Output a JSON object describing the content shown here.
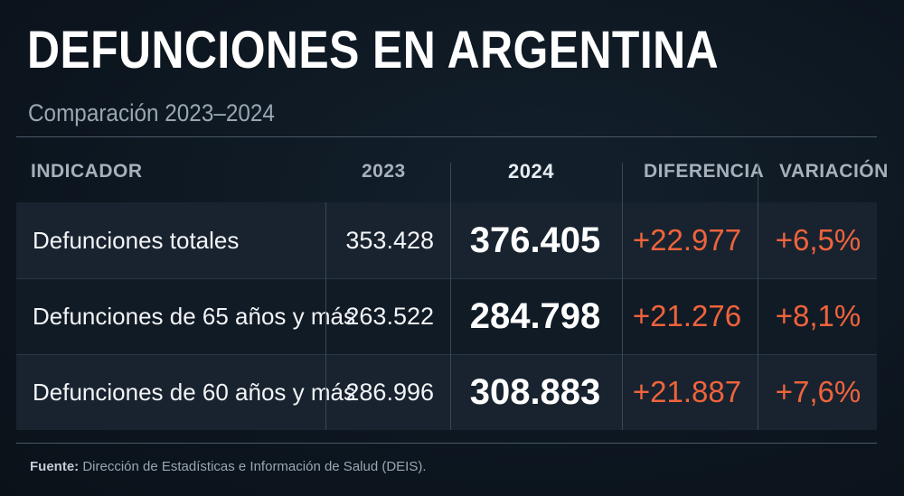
{
  "title": "DEFUNCIONES EN ARGENTINA",
  "subtitle": "Comparación 2023–2024",
  "table": {
    "headers": {
      "indicador": "INDICADOR",
      "y2023": "2023",
      "y2024": "2024",
      "diferencia": "DIFERENCIA",
      "variacion": "VARIACIÓN"
    },
    "rows": [
      {
        "indicador": "Defunciones totales",
        "y2023": "353.428",
        "y2024": "376.405",
        "diferencia": "+22.977",
        "variacion": "+6,5%"
      },
      {
        "indicador": "Defunciones de 65 años y más",
        "y2023": "263.522",
        "y2024": "284.798",
        "diferencia": "+21.276",
        "variacion": "+8,1%"
      },
      {
        "indicador": "Defunciones de 60 años y más",
        "y2023": "286.996",
        "y2024": "308.883",
        "diferencia": "+21.887",
        "variacion": "+7,6%"
      }
    ]
  },
  "source": {
    "label": "Fuente:",
    "text": " Dirección de Estadísticas e Información de Salud (DEIS)."
  },
  "colors": {
    "background": "#0d1620",
    "accent": "#f0633c",
    "muted": "#9aa6b2"
  }
}
